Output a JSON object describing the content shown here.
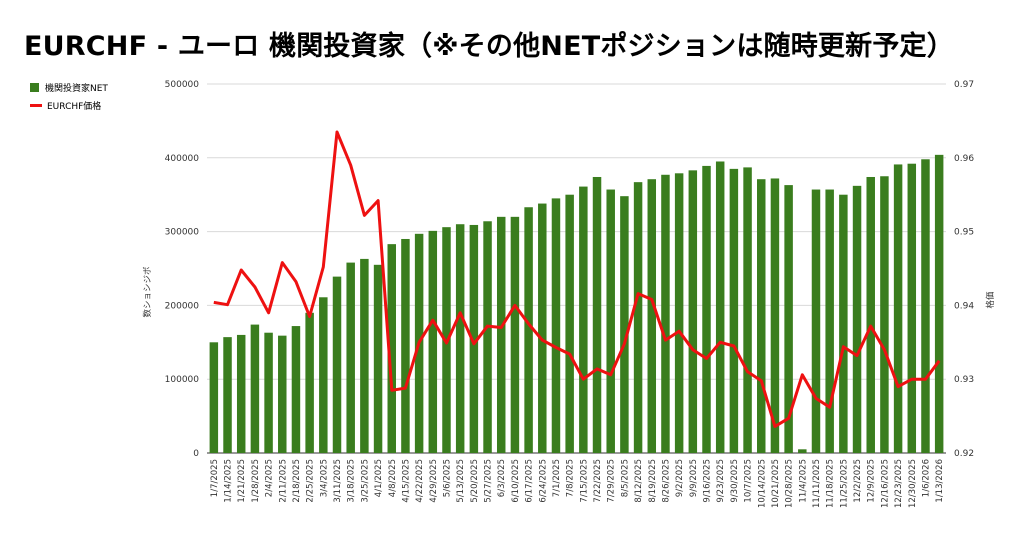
{
  "title": "EURCHF - ユーロ 機関投資家（※その他NETポジションは随時更新予定）",
  "legend": [
    {
      "label": "機関投資家NET",
      "color": "#3a7d1e"
    },
    {
      "label": "EURCHF価格",
      "color": "#ee1111"
    }
  ],
  "chart_data": {
    "type": "bar+line",
    "categories": [
      "1/7/2025",
      "1/14/2025",
      "1/21/2025",
      "1/28/2025",
      "2/4/2025",
      "2/11/2025",
      "2/18/2025",
      "2/25/2025",
      "3/4/2025",
      "3/11/2025",
      "3/18/2025",
      "3/25/2025",
      "4/1/2025",
      "4/8/2025",
      "4/15/2025",
      "4/22/2025",
      "4/29/2025",
      "5/6/2025",
      "5/13/2025",
      "5/20/2025",
      "5/27/2025",
      "6/3/2025",
      "6/10/2025",
      "6/17/2025",
      "6/24/2025",
      "7/1/2025",
      "7/8/2025",
      "7/15/2025",
      "7/22/2025",
      "7/29/2025",
      "8/5/2025",
      "8/12/2025",
      "8/19/2025",
      "8/26/2025",
      "9/2/2025",
      "9/9/2025",
      "9/16/2025",
      "9/23/2025",
      "9/30/2025",
      "10/7/2025",
      "10/14/2025",
      "10/21/2025",
      "10/28/2025",
      "11/4/2025",
      "11/11/2025",
      "11/18/2025",
      "11/25/2025",
      "12/2/2025",
      "12/9/2025",
      "12/16/2025",
      "12/23/2025",
      "12/30/2025",
      "1/6/2026",
      "1/13/2026"
    ],
    "ylabel": "数ショシジボ",
    "y2label": "格価",
    "ylim": [
      0,
      500000
    ],
    "y2lim": [
      0.92,
      0.97
    ],
    "yticks": [
      "0",
      "100000",
      "200000",
      "300000",
      "400000",
      "500000"
    ],
    "y2ticks": [
      "0.92",
      "0.93",
      "0.94",
      "0.95",
      "0.96",
      "0.97"
    ],
    "series": [
      {
        "name": "機関投資家NET",
        "type": "bar",
        "color": "#3a7d1e",
        "values": [
          150000,
          157000,
          160000,
          174000,
          163000,
          159000,
          172000,
          190000,
          211000,
          239000,
          258000,
          263000,
          255000,
          283000,
          290000,
          297000,
          301000,
          306000,
          310000,
          309000,
          314000,
          320000,
          320000,
          333000,
          338000,
          345000,
          350000,
          361000,
          374000,
          357000,
          348000,
          367000,
          371000,
          377000,
          379000,
          383000,
          389000,
          395000,
          385000,
          387000,
          371000,
          372000,
          363000,
          5000,
          357000,
          357000,
          350000,
          362000,
          374000,
          375000,
          391000,
          392000,
          398000,
          404000
        ]
      },
      {
        "name": "EURCHF価格",
        "type": "line",
        "color": "#ee1111",
        "values": [
          0.9404,
          0.9401,
          0.9448,
          0.9425,
          0.939,
          0.9458,
          0.9432,
          0.9385,
          0.9452,
          0.9635,
          0.959,
          0.9522,
          0.9542,
          0.9285,
          0.9288,
          0.935,
          0.938,
          0.9349,
          0.939,
          0.9348,
          0.9372,
          0.937,
          0.94,
          0.9375,
          0.9353,
          0.9343,
          0.9334,
          0.93,
          0.9314,
          0.9306,
          0.9348,
          0.9416,
          0.9408,
          0.9353,
          0.9365,
          0.934,
          0.9328,
          0.935,
          0.9345,
          0.931,
          0.9298,
          0.9236,
          0.9247,
          0.9306,
          0.9274,
          0.9262,
          0.9344,
          0.9332,
          0.9372,
          0.934,
          0.929,
          0.93,
          0.93,
          0.9325
        ]
      }
    ],
    "legend_position": "left",
    "grid": true
  }
}
